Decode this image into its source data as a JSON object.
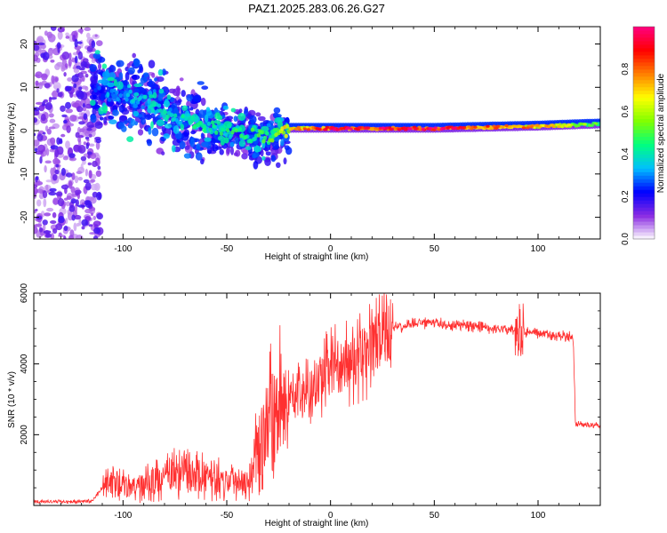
{
  "chart_data": [
    {
      "type": "heatmap",
      "title": "PAZ1.2025.283.06.26.G27",
      "xlabel": "Height of straight line (km)",
      "ylabel": "Frequency (Hz)",
      "xlim": [
        -143,
        130
      ],
      "ylim": [
        -25,
        24
      ],
      "xticks": [
        -100,
        -50,
        0,
        50,
        100
      ],
      "yticks": [
        -20,
        -10,
        0,
        10,
        20
      ],
      "colorbar": {
        "label": "Normalized spectral amplitude",
        "range": [
          0,
          1
        ],
        "ticks": [
          0.0,
          0.2,
          0.4,
          0.6,
          0.8
        ],
        "tick_labels": [
          "0.0",
          "0.2",
          "0.4",
          "0.6",
          "0.8"
        ],
        "colors": [
          "#ffffff",
          "#8a2be2",
          "#0000ff",
          "#00bfff",
          "#00ff80",
          "#80ff00",
          "#ffff00",
          "#ff8000",
          "#ff0000",
          "#ff0080"
        ]
      },
      "ridge": [
        {
          "x": -143,
          "f": 0,
          "amp": 0.05
        },
        {
          "x": -115,
          "f": 9,
          "amp": 0.25
        },
        {
          "x": -95,
          "f": 8,
          "amp": 0.35
        },
        {
          "x": -75,
          "f": 3,
          "amp": 0.4
        },
        {
          "x": -50,
          "f": 0,
          "amp": 0.45
        },
        {
          "x": -30,
          "f": -2,
          "amp": 0.5
        },
        {
          "x": -20,
          "f": 0.5,
          "amp": 0.7
        },
        {
          "x": 0,
          "f": 0.5,
          "amp": 0.9
        },
        {
          "x": 50,
          "f": 0.5,
          "amp": 0.95
        },
        {
          "x": 100,
          "f": 1,
          "amp": 0.75
        },
        {
          "x": 130,
          "f": 1.5,
          "amp": 0.5
        }
      ]
    },
    {
      "type": "line",
      "xlabel": "Height of straight line (km)",
      "ylabel": "SNR (10 * v/v)",
      "xlim": [
        -143,
        130
      ],
      "ylim": [
        0,
        6000
      ],
      "xticks": [
        -100,
        -50,
        0,
        50,
        100
      ],
      "yticks": [
        2000,
        4000,
        6000
      ],
      "series_color": "#ff3030",
      "series": [
        {
          "name": "SNR",
          "x": [
            -143,
            -115,
            -108,
            -95,
            -80,
            -70,
            -60,
            -50,
            -40,
            -35,
            -30,
            -25,
            -20,
            -10,
            0,
            10,
            20,
            30,
            40,
            50,
            70,
            90,
            100,
            110,
            117,
            118,
            130
          ],
          "y": [
            100,
            120,
            650,
            500,
            800,
            950,
            800,
            700,
            750,
            1600,
            2400,
            2900,
            3000,
            3200,
            3900,
            4000,
            4400,
            5000,
            5150,
            5150,
            5050,
            4950,
            4850,
            4800,
            4750,
            2300,
            2250
          ]
        }
      ]
    }
  ]
}
